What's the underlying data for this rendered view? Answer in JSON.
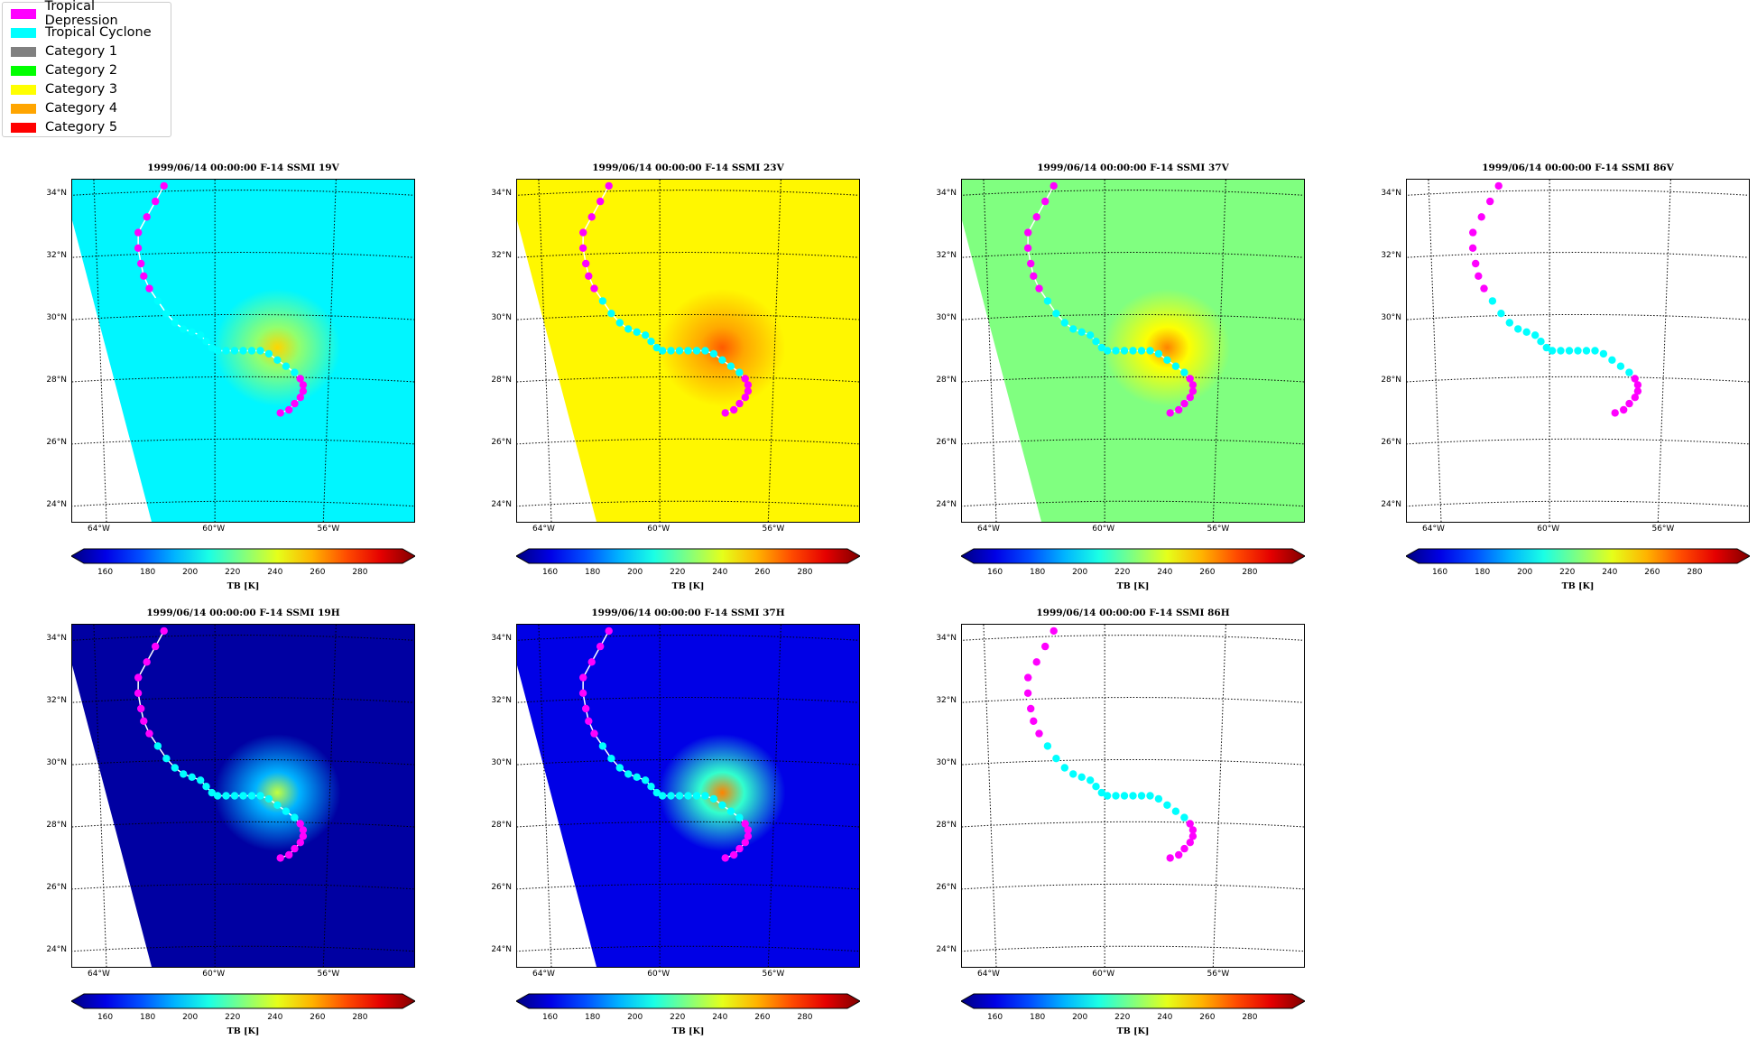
{
  "legend": {
    "items": [
      {
        "label": "Tropical Depression",
        "color": "#ff00ff"
      },
      {
        "label": "Tropical Cyclone",
        "color": "#00ffff"
      },
      {
        "label": "Category 1",
        "color": "#808080"
      },
      {
        "label": "Category 2",
        "color": "#00ff00"
      },
      {
        "label": "Category 3",
        "color": "#ffff00"
      },
      {
        "label": "Category 4",
        "color": "#ffa500"
      },
      {
        "label": "Category 5",
        "color": "#ff0000"
      }
    ]
  },
  "lat_labels": [
    "34°N",
    "32°N",
    "30°N",
    "28°N",
    "26°N",
    "24°N"
  ],
  "lon_labels": [
    "64°W",
    "60°W",
    "56°W"
  ],
  "colorbar": {
    "ticks": [
      "160",
      "180",
      "200",
      "220",
      "240",
      "260",
      "280"
    ],
    "label": "TB [K]",
    "colormap": "jet"
  },
  "panels": [
    {
      "title": "1999/06/14 00:00:00  F-14 SSMI 19V"
    },
    {
      "title": "1999/06/14 00:00:00  F-14 SSMI 23V"
    },
    {
      "title": "1999/06/14 00:00:00  F-14 SSMI 37V"
    },
    {
      "title": "1999/06/14 00:00:00  F-14 SSMI 86V"
    },
    {
      "title": "1999/06/14 00:00:00  F-14 SSMI 19H"
    },
    {
      "title": "1999/06/14 00:00:00  F-14 SSMI 37H"
    },
    {
      "title": "1999/06/14 00:00:00  F-14 SSMI 86H"
    }
  ],
  "chart_data": {
    "type": "scatter",
    "description_type": "map panels with storm track over brightness temperature field",
    "map_extent": {
      "lon": [
        -65,
        -53
      ],
      "lat": [
        23.5,
        34.5
      ]
    },
    "colorbar_range": [
      150,
      300
    ],
    "track": {
      "lon": [
        -61.8,
        -62.1,
        -62.4,
        -62.7,
        -62.7,
        -62.6,
        -62.5,
        -62.3,
        -62.0,
        -61.7,
        -61.4,
        -61.1,
        -60.8,
        -60.5,
        -60.3,
        -60.1,
        -59.9,
        -59.6,
        -59.3,
        -59.0,
        -58.7,
        -58.4,
        -58.1,
        -57.8,
        -57.5,
        -57.2,
        -57.0,
        -56.9,
        -56.9,
        -57.0,
        -57.2,
        -57.4,
        -57.7
      ],
      "lat": [
        34.3,
        33.8,
        33.3,
        32.8,
        32.3,
        31.8,
        31.4,
        31.0,
        30.6,
        30.2,
        29.9,
        29.7,
        29.6,
        29.5,
        29.3,
        29.1,
        29.0,
        29.0,
        29.0,
        29.0,
        29.0,
        29.0,
        28.9,
        28.7,
        28.5,
        28.3,
        28.1,
        27.9,
        27.7,
        27.5,
        27.3,
        27.1,
        27.0
      ],
      "category": [
        "TD",
        "TD",
        "TD",
        "TD",
        "TD",
        "TD",
        "TD",
        "TD",
        "TC",
        "TC",
        "TC",
        "TC",
        "TC",
        "TC",
        "TC",
        "TC",
        "TC",
        "TC",
        "TC",
        "TC",
        "TC",
        "TC",
        "TC",
        "TC",
        "TC",
        "TC",
        "TD",
        "TD",
        "TD",
        "TD",
        "TD",
        "TD",
        "TD"
      ]
    },
    "panels": [
      {
        "channel": "19V",
        "background_tb": 205,
        "center_tb": 250
      },
      {
        "channel": "23V",
        "background_tb": 245,
        "center_tb": 268
      },
      {
        "channel": "37V",
        "background_tb": 225,
        "center_tb": 262
      },
      {
        "channel": "86V",
        "background_tb": null,
        "center_tb": null
      },
      {
        "channel": "19H",
        "background_tb": 155,
        "center_tb": 235
      },
      {
        "channel": "37H",
        "background_tb": 165,
        "center_tb": 262
      },
      {
        "channel": "86H",
        "background_tb": null,
        "center_tb": null
      }
    ]
  }
}
